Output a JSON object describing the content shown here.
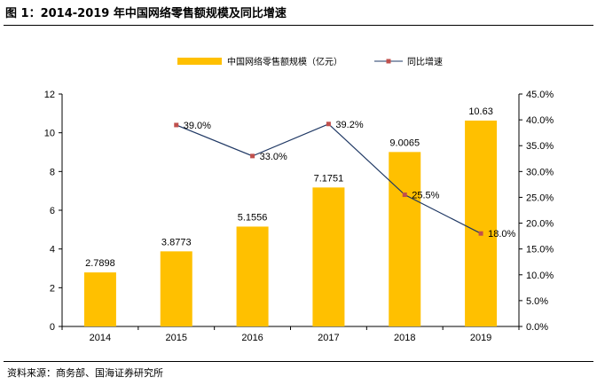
{
  "header": {
    "title": "图 1：2014-2019 年中国网络零售额规模及同比增速"
  },
  "footer": {
    "source": "资料来源：商务部、国海证券研究所"
  },
  "colors": {
    "bar": "#FFC000",
    "line": "#1F3864",
    "marker": "#C0504D"
  },
  "chart_data": {
    "type": "bar",
    "categories": [
      "2014",
      "2015",
      "2016",
      "2017",
      "2018",
      "2019"
    ],
    "series": [
      {
        "name": "中国网络零售额规模（亿元）",
        "type": "bar",
        "axis": "left",
        "values": [
          2.7898,
          3.8773,
          5.1556,
          7.1751,
          9.0065,
          10.63
        ],
        "labels": [
          "2.7898",
          "3.8773",
          "5.1556",
          "7.1751",
          "9.0065",
          "10.63"
        ]
      },
      {
        "name": "同比增速",
        "type": "line",
        "axis": "right",
        "values": [
          null,
          0.39,
          0.33,
          0.392,
          0.255,
          0.18
        ],
        "labels": [
          "",
          "39.0%",
          "33.0%",
          "39.2%",
          "25.5%",
          "18.0%"
        ]
      }
    ],
    "y_left": {
      "min": 0,
      "max": 12,
      "ticks": [
        "0",
        "2",
        "4",
        "6",
        "8",
        "10",
        "12"
      ]
    },
    "y_right": {
      "min": 0,
      "max": 0.45,
      "ticks": [
        "0.0%",
        "5.0%",
        "10.0%",
        "15.0%",
        "20.0%",
        "25.0%",
        "30.0%",
        "35.0%",
        "40.0%",
        "45.0%"
      ]
    },
    "legend_position": "top",
    "grid": false
  }
}
